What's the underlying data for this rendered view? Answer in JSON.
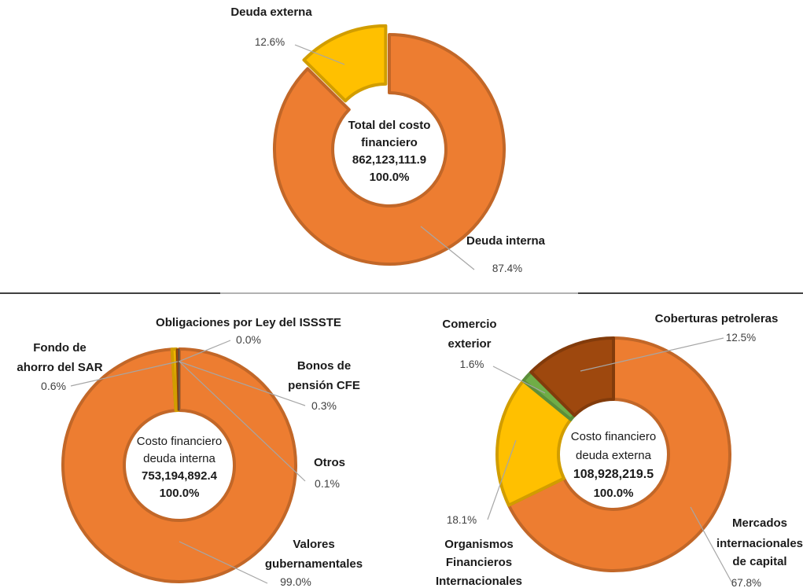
{
  "chart_data": [
    {
      "type": "pie",
      "center_label": [
        "Total del costo",
        "financiero",
        "862,123,111.9",
        "100.0%"
      ],
      "slices": [
        {
          "name": "Deuda interna",
          "value": 87.4,
          "pct_label": "87.4%",
          "color": "#ED7D31"
        },
        {
          "name": "Deuda externa",
          "value": 12.6,
          "pct_label": "12.6%",
          "color": "#FFC000"
        }
      ]
    },
    {
      "type": "pie",
      "center_label": [
        "Costo financiero",
        "deuda interna",
        "753,194,892.4",
        "100.0%"
      ],
      "slices": [
        {
          "name": "Valores gubernamentales",
          "value": 99.0,
          "pct_label": "99.0%",
          "color": "#ED7D31"
        },
        {
          "name": "Fondo de ahorro del SAR",
          "value": 0.6,
          "pct_label": "0.6%",
          "color": "#FFC000"
        },
        {
          "name": "Obligaciones por Ley del ISSSTE",
          "value": 0.0,
          "pct_label": "0.0%",
          "color": "#70AD47"
        },
        {
          "name": "Bonos de pensión CFE",
          "value": 0.3,
          "pct_label": "0.3%",
          "color": "#9E480E"
        },
        {
          "name": "Otros",
          "value": 0.1,
          "pct_label": "0.1%",
          "color": "#636363"
        }
      ]
    },
    {
      "type": "pie",
      "center_label": [
        "Costo financiero",
        "deuda externa",
        "108,928,219.5",
        "100.0%"
      ],
      "slices": [
        {
          "name": "Mercados internacionales de capital",
          "value": 67.8,
          "pct_label": "67.8%",
          "color": "#ED7D31"
        },
        {
          "name": "Organismos Financieros Internacionales",
          "value": 18.1,
          "pct_label": "18.1%",
          "color": "#FFC000"
        },
        {
          "name": "Comercio exterior",
          "value": 1.6,
          "pct_label": "1.6%",
          "color": "#70AD47"
        },
        {
          "name": "Coberturas petroleras",
          "value": 12.5,
          "pct_label": "12.5%",
          "color": "#9E480E"
        }
      ]
    }
  ]
}
